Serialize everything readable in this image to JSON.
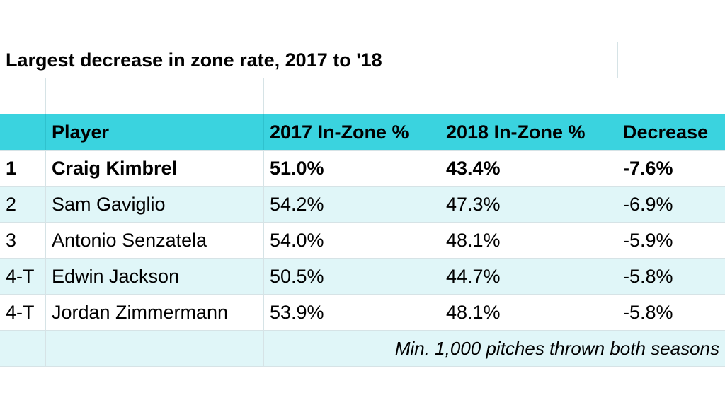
{
  "title": "Largest decrease in zone rate, 2017 to '18",
  "columns": [
    "",
    "Player",
    "2017 In-Zone %",
    "2018 In-Zone %",
    "Decrease"
  ],
  "rows": [
    {
      "rank": "1",
      "player": "Craig Kimbrel",
      "y2017": "51.0%",
      "y2018": "43.4%",
      "decrease": "-7.6%"
    },
    {
      "rank": "2",
      "player": "Sam Gaviglio",
      "y2017": "54.2%",
      "y2018": "47.3%",
      "decrease": "-6.9%"
    },
    {
      "rank": "3",
      "player": "Antonio Senzatela",
      "y2017": "54.0%",
      "y2018": "48.1%",
      "decrease": "-5.9%"
    },
    {
      "rank": "4-T",
      "player": "Edwin Jackson",
      "y2017": "50.5%",
      "y2018": "44.7%",
      "decrease": "-5.8%"
    },
    {
      "rank": "4-T",
      "player": "Jordan Zimmermann",
      "y2017": "53.9%",
      "y2018": "48.1%",
      "decrease": "-5.8%"
    }
  ],
  "footnote": "Min. 1,000 pitches thrown both seasons",
  "colors": {
    "header": "#3ad3df",
    "stripe": "#e0f6f8",
    "grid": "#d6e3e6"
  }
}
